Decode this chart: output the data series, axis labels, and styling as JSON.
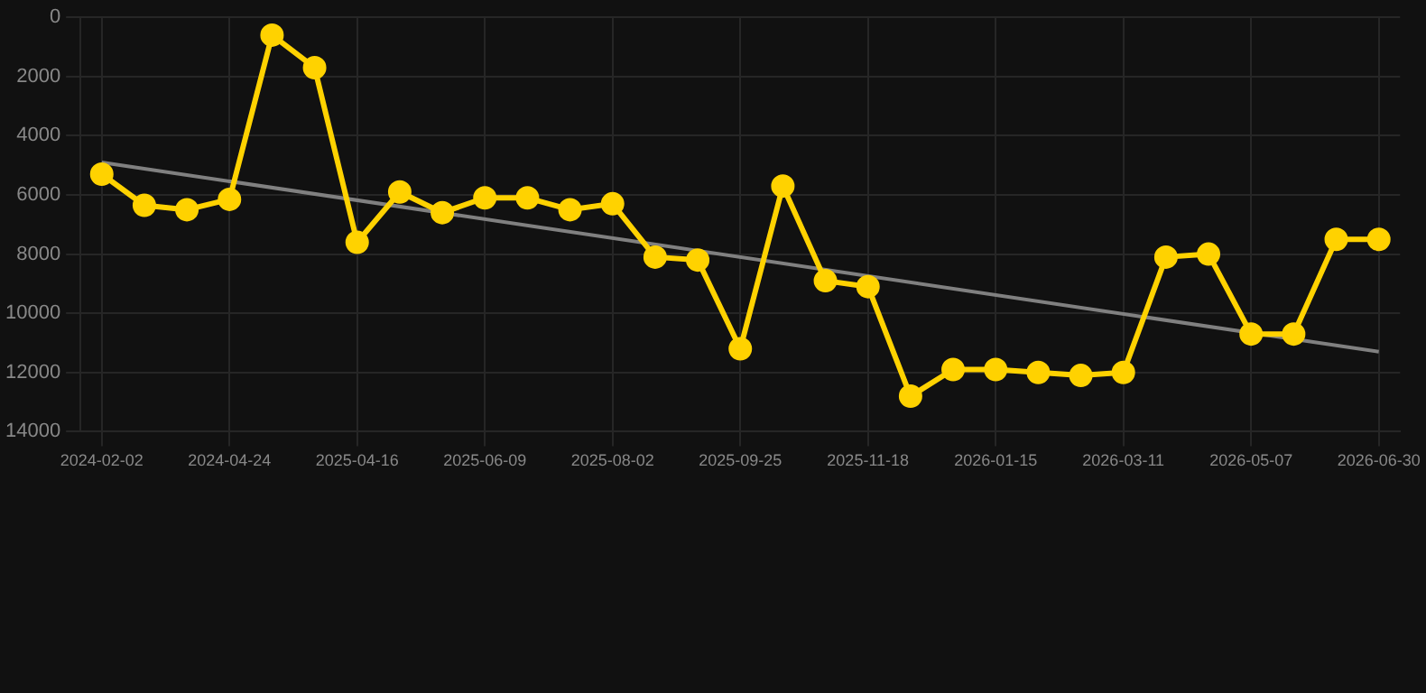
{
  "chart_data": {
    "type": "line",
    "categories": [
      "2024-02-02",
      null,
      null,
      "2024-04-24",
      null,
      null,
      "2025-04-16",
      null,
      null,
      "2025-06-09",
      null,
      null,
      "2025-08-02",
      null,
      null,
      "2025-09-25",
      null,
      null,
      "2025-11-18",
      null,
      null,
      "2026-01-15",
      null,
      null,
      "2026-03-11",
      null,
      null,
      "2026-05-07",
      null,
      null,
      "2026-06-30"
    ],
    "series": [
      {
        "color": "#ffd200",
        "marker": "circle",
        "values": [
          5300,
          6350,
          6500,
          6150,
          600,
          1700,
          7600,
          5900,
          6600,
          6100,
          6100,
          6500,
          6300,
          8100,
          8200,
          11200,
          5700,
          8900,
          9100,
          12800,
          11900,
          11900,
          12000,
          12100,
          12000,
          8100,
          8000,
          10700,
          10700,
          7500,
          7500
        ]
      },
      {
        "color": "#808080",
        "marker": "none",
        "values": [
          4900,
          null,
          null,
          null,
          null,
          null,
          null,
          null,
          null,
          null,
          null,
          null,
          null,
          null,
          null,
          null,
          null,
          null,
          null,
          null,
          null,
          null,
          null,
          null,
          null,
          null,
          null,
          null,
          null,
          null,
          11300
        ]
      }
    ],
    "ylim": [
      14000,
      0
    ],
    "yticks": [
      0,
      2000,
      4000,
      6000,
      8000,
      10000,
      12000,
      14000
    ],
    "grid": true
  }
}
